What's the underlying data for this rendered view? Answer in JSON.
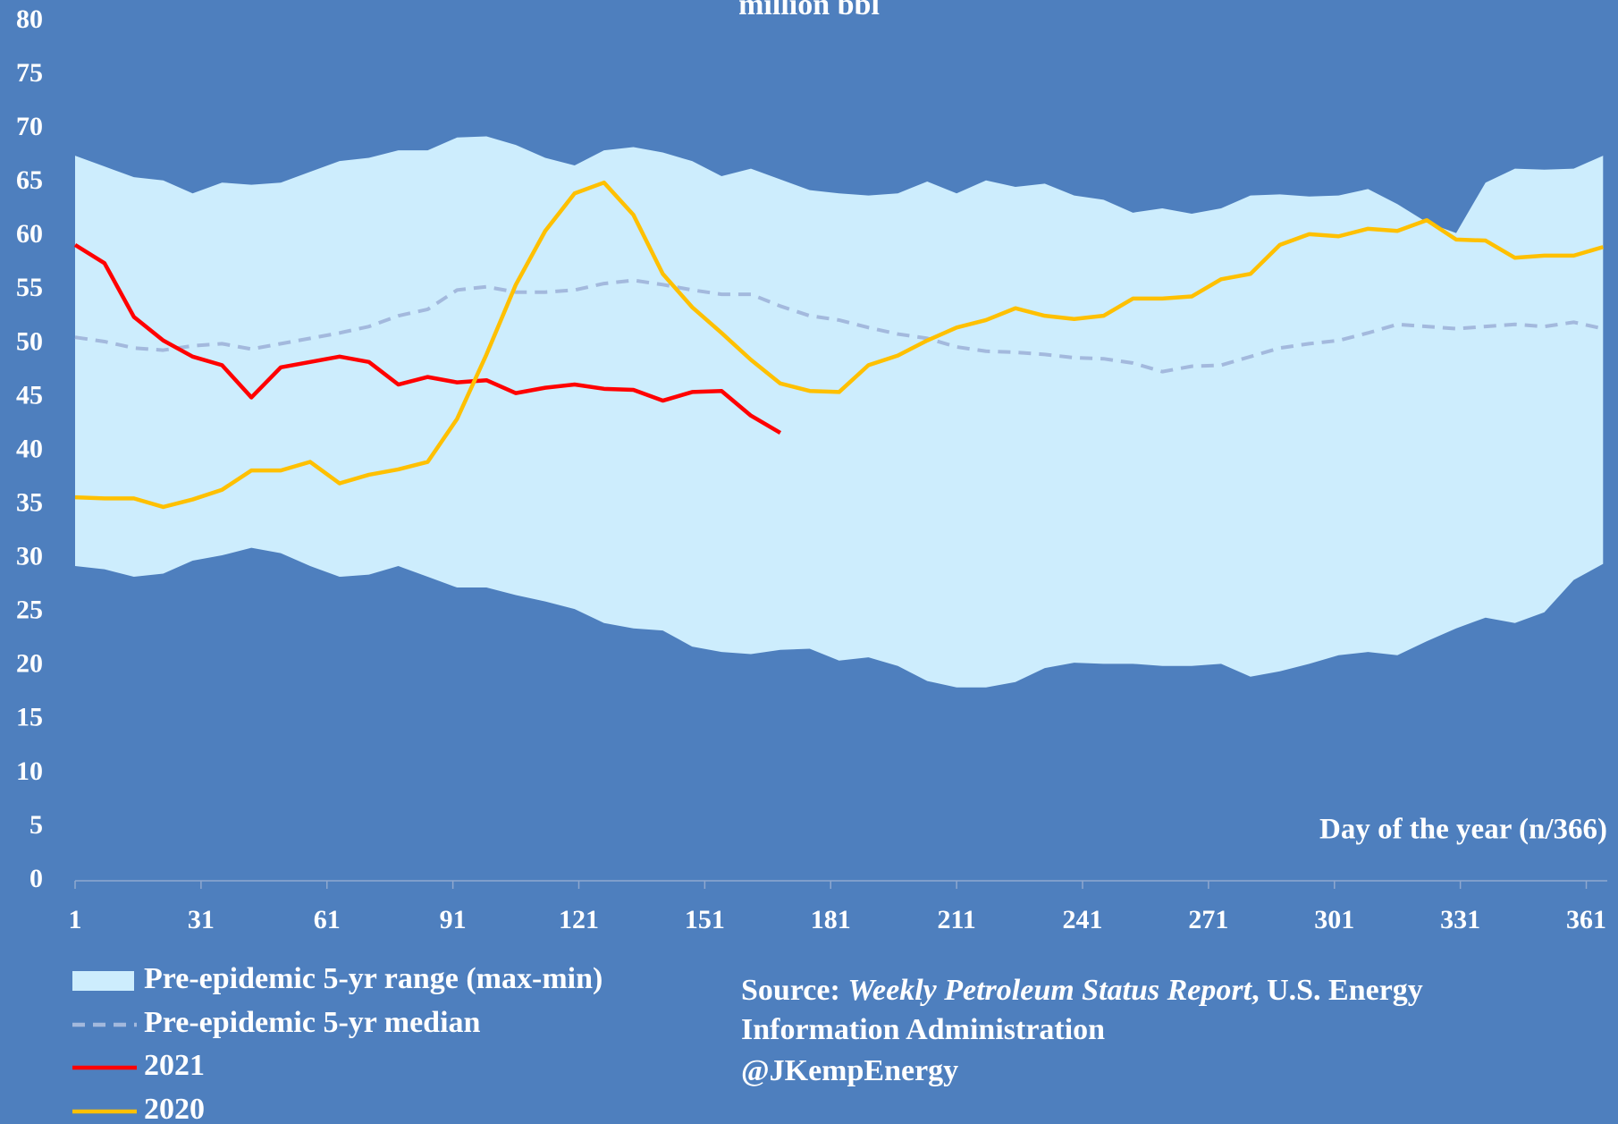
{
  "chart_data": {
    "type": "line",
    "subtitle": "million bbl",
    "x_label": "Day of the year (n/366)",
    "xlim": [
      1,
      366
    ],
    "xticks": [
      1,
      31,
      61,
      91,
      121,
      151,
      181,
      211,
      241,
      271,
      301,
      331,
      361
    ],
    "ylim": [
      0,
      80
    ],
    "yticks": [
      0,
      5,
      10,
      15,
      20,
      25,
      30,
      35,
      40,
      45,
      50,
      55,
      60,
      65,
      70,
      75,
      80
    ],
    "background": "#4e7fbe",
    "x": [
      1,
      8,
      15,
      22,
      29,
      36,
      43,
      50,
      57,
      64,
      71,
      78,
      85,
      92,
      99,
      106,
      113,
      120,
      127,
      134,
      141,
      148,
      155,
      162,
      169,
      176,
      183,
      190,
      197,
      204,
      211,
      218,
      225,
      232,
      239,
      246,
      253,
      260,
      267,
      274,
      281,
      288,
      295,
      302,
      309,
      316,
      323,
      330,
      337,
      344,
      351,
      358,
      365
    ],
    "range": {
      "name": "Pre-epidemic 5-yr range (max-min)",
      "color": "#cdedfd",
      "high": [
        67.5,
        66.5,
        65.5,
        65.2,
        64,
        65,
        64.8,
        65,
        66,
        67,
        67.3,
        68,
        68,
        69.2,
        69.3,
        68.5,
        67.3,
        66.6,
        68,
        68.3,
        67.8,
        67,
        65.6,
        66.3,
        65.3,
        64.3,
        64,
        63.8,
        64,
        65.1,
        64,
        65.2,
        64.6,
        64.9,
        63.8,
        63.4,
        62.2,
        62.6,
        62.1,
        62.6,
        63.8,
        63.9,
        63.7,
        63.8,
        64.4,
        63,
        61.3,
        60.3,
        65,
        66.3,
        66.2,
        66.3,
        67.5
      ],
      "low": [
        29.3,
        29,
        28.3,
        28.6,
        29.8,
        30.3,
        31,
        30.5,
        29.3,
        28.3,
        28.5,
        29.3,
        28.3,
        27.3,
        27.3,
        26.6,
        26,
        25.3,
        24,
        23.5,
        23.3,
        21.8,
        21.3,
        21.1,
        21.5,
        21.6,
        20.5,
        20.8,
        20,
        18.6,
        18,
        18,
        18.5,
        19.8,
        20.3,
        20.2,
        20.2,
        20,
        20,
        20.2,
        19,
        19.5,
        20.2,
        21,
        21.3,
        21,
        22.3,
        23.5,
        24.5,
        24,
        25,
        28,
        29.5
      ]
    },
    "series": [
      {
        "name": "Pre-epidemic 5-yr median",
        "color": "#a3b9dd",
        "dashed": true,
        "values": [
          50.6,
          50.2,
          49.6,
          49.4,
          49.8,
          50,
          49.5,
          50,
          50.5,
          51,
          51.6,
          52.6,
          53.2,
          55,
          55.3,
          54.8,
          54.8,
          55,
          55.6,
          55.9,
          55.5,
          55,
          54.6,
          54.6,
          53.5,
          52.6,
          52.2,
          51.5,
          50.9,
          50.5,
          49.7,
          49.3,
          49.2,
          49,
          48.7,
          48.6,
          48.2,
          47.4,
          47.9,
          48,
          48.8,
          49.6,
          50,
          50.3,
          51,
          51.8,
          51.6,
          51.4,
          51.6,
          51.8,
          51.6,
          52,
          51.4
        ]
      },
      {
        "name": "2021",
        "color": "#ff0000",
        "dashed": false,
        "values": [
          59.2,
          57.5,
          52.5,
          50.3,
          48.8,
          48,
          45,
          47.8,
          48.3,
          48.8,
          48.3,
          46.2,
          46.9,
          46.4,
          46.6,
          45.4,
          45.9,
          46.2,
          45.8,
          45.7,
          44.7,
          45.5,
          45.6,
          43.3,
          41.7,
          null,
          null,
          null,
          null,
          null,
          null,
          null,
          null,
          null,
          null,
          null,
          null,
          null,
          null,
          null,
          null,
          null,
          null,
          null,
          null,
          null,
          null,
          null,
          null,
          null,
          null,
          null,
          null
        ]
      },
      {
        "name": "2020",
        "color": "#ffc000",
        "dashed": false,
        "values": [
          35.7,
          35.6,
          35.6,
          34.8,
          35.5,
          36.4,
          38.2,
          38.2,
          39,
          37,
          37.8,
          38.3,
          39,
          43,
          49,
          55.5,
          60.5,
          64,
          65,
          62,
          56.5,
          53.4,
          51,
          48.5,
          46.3,
          45.6,
          45.5,
          48,
          48.9,
          50.3,
          51.5,
          52.2,
          53.3,
          52.6,
          52.3,
          52.6,
          54.2,
          54.2,
          54.4,
          56,
          56.5,
          59.2,
          60.2,
          60,
          60.7,
          60.5,
          61.5,
          59.7,
          59.6,
          58,
          58.2,
          58.2,
          59
        ]
      }
    ],
    "source": {
      "label": "Source:",
      "report": "Weekly Petroleum Status Report",
      "line1_rest": ", U.S. Energy",
      "line2": "Information Administration",
      "line3": "@JKempEnergy"
    }
  }
}
